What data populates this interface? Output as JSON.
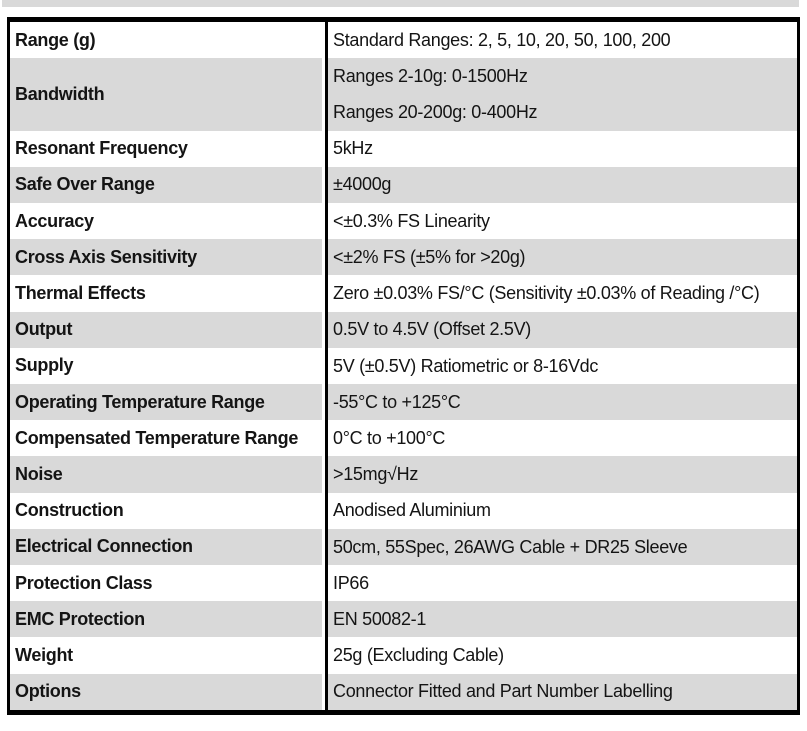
{
  "page": {
    "background_color": "#ffffff",
    "top_strip_color": "#d9d9d9"
  },
  "table": {
    "border_color": "#000000",
    "shade_color": "#d9d9d9",
    "text_color": "#141414",
    "rows": [
      {
        "label": "Range (g)",
        "value": "Standard Ranges: 2, 5, 10, 20, 50, 100, 200",
        "shaded": false
      },
      {
        "label": "Bandwidth",
        "value": [
          "Ranges 2-10g: 0-1500Hz",
          "Ranges 20-200g: 0-400Hz"
        ],
        "shaded": true
      },
      {
        "label": "Resonant Frequency",
        "value": "5kHz",
        "shaded": false
      },
      {
        "label": "Safe Over Range",
        "value": "±4000g",
        "shaded": true
      },
      {
        "label": "Accuracy",
        "value": "<±0.3% FS Linearity",
        "shaded": false
      },
      {
        "label": "Cross Axis Sensitivity",
        "value": "<±2% FS (±5% for >20g)",
        "shaded": true
      },
      {
        "label": "Thermal Effects",
        "value": "Zero ±0.03% FS/°C (Sensitivity ±0.03% of Reading /°C)",
        "shaded": false
      },
      {
        "label": "Output",
        "value": "0.5V to 4.5V (Offset 2.5V)",
        "shaded": true
      },
      {
        "label": "Supply",
        "value": "5V (±0.5V) Ratiometric or 8-16Vdc",
        "shaded": false
      },
      {
        "label": "Operating Temperature Range",
        "value": "-55°C to +125°C",
        "shaded": true
      },
      {
        "label": "Compensated Temperature Range",
        "value": "0°C to +100°C",
        "shaded": false
      },
      {
        "label": "Noise",
        "value": ">15mg√Hz",
        "shaded": true
      },
      {
        "label": "Construction",
        "value": "Anodised Aluminium",
        "shaded": false
      },
      {
        "label": "Electrical Connection",
        "value": "50cm, 55Spec, 26AWG Cable + DR25 Sleeve",
        "shaded": true
      },
      {
        "label": "Protection Class",
        "value": "IP66",
        "shaded": false
      },
      {
        "label": "EMC Protection",
        "value": "EN 50082-1",
        "shaded": true
      },
      {
        "label": "Weight",
        "value": "25g (Excluding Cable)",
        "shaded": false
      },
      {
        "label": "Options",
        "value": "Connector Fitted and Part Number Labelling",
        "shaded": true
      }
    ]
  }
}
